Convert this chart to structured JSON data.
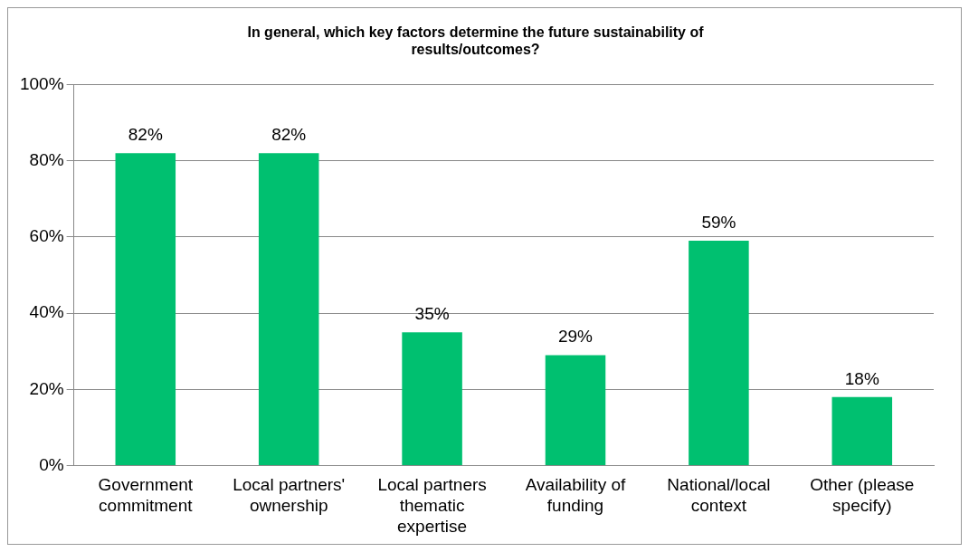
{
  "chart_data": {
    "type": "bar",
    "title": "In general, which key factors determine the future sustainability of results/outcomes?",
    "categories": [
      "Government commitment",
      "Local partners' ownership",
      "Local partners thematic expertise",
      "Availability of funding",
      "National/local context",
      "Other (please specify)"
    ],
    "values": [
      82,
      82,
      35,
      29,
      59,
      18
    ],
    "value_labels": [
      "82%",
      "82%",
      "35%",
      "29%",
      "59%",
      "18%"
    ],
    "color": "#00c070",
    "ylim": [
      0,
      100
    ],
    "yticks": [
      {
        "value": 0,
        "label": "0%"
      },
      {
        "value": 20,
        "label": "20%"
      },
      {
        "value": 40,
        "label": "40%"
      },
      {
        "value": 60,
        "label": "60%"
      },
      {
        "value": 80,
        "label": "80%"
      },
      {
        "value": 100,
        "label": "100%"
      }
    ],
    "grid": "y",
    "legend": false
  }
}
